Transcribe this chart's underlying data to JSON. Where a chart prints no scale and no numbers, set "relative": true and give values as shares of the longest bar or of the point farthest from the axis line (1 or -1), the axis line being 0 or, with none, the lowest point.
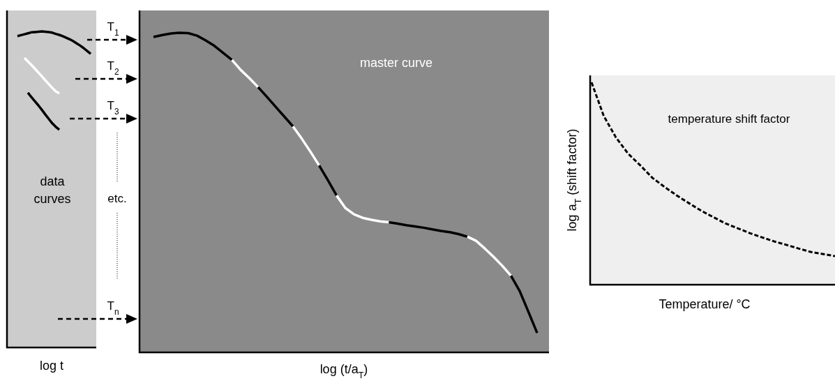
{
  "chart_data": [
    {
      "type": "line",
      "relative": true,
      "xlabel": "log t",
      "annotations": [
        "data curves",
        "T$_{1}$",
        "T$_{2}$",
        "T$_{3}$",
        "etc.",
        "T$_{n}$"
      ],
      "categories": [
        null,
        null,
        null,
        null,
        null,
        null,
        null,
        null,
        null,
        null,
        null,
        null,
        null,
        null,
        null,
        null,
        null,
        null,
        null,
        null,
        null,
        null,
        null,
        null,
        null
      ],
      "series": [
        {
          "color": "#000000",
          "values": [
            null,
            null,
            0.985,
            0.988,
            0.991,
            0.994,
            0.997,
            0.998,
            0.999,
            1,
            0.999,
            0.998,
            0.996,
            0.992,
            0.989,
            0.985,
            0.98,
            0.975,
            0.969,
            0.962,
            0.955,
            0.947,
            0.938,
            0.929,
            null
          ]
        },
        {
          "color": "#ffffff",
          "values": [
            null,
            null,
            null,
            null,
            0.916,
            0.905,
            0.894,
            0.882,
            0.87,
            0.858,
            0.845,
            0.833,
            0.821,
            0.81,
            0.804,
            null,
            null,
            null,
            null,
            null,
            null,
            null,
            null,
            null,
            null
          ]
        },
        {
          "color": "#000000",
          "values": [
            null,
            null,
            null,
            null,
            null,
            0.806,
            0.792,
            0.779,
            0.766,
            0.752,
            0.737,
            0.723,
            0.709,
            0.698,
            0.689,
            null,
            null,
            null,
            null,
            null,
            null,
            null,
            null,
            null,
            null
          ]
        }
      ]
    },
    {
      "type": "line",
      "relative": true,
      "xlabel": "log (t/a$_{T}$)",
      "annotations": [
        "master curve"
      ],
      "categories": [
        null,
        null,
        null,
        null,
        null,
        null,
        null,
        null,
        null,
        null,
        null,
        null,
        null,
        null,
        null,
        null,
        null,
        null,
        null,
        null,
        null,
        null,
        null,
        null,
        null,
        null,
        null,
        null,
        null,
        null,
        null,
        null,
        null,
        null,
        null,
        null,
        null,
        null,
        null,
        null,
        null,
        null,
        null,
        null,
        null
      ],
      "series": [
        {
          "color": "#000000",
          "values": [
            0.987,
            0.993,
            0.998,
            1,
            0.999,
            0.991,
            0.976,
            0.959,
            0.937,
            0.915,
            null,
            null,
            null,
            null,
            null,
            null,
            null,
            null,
            null,
            null,
            null,
            null,
            null,
            null,
            null,
            null,
            null,
            null,
            null,
            null,
            null,
            null,
            null,
            null,
            null,
            null,
            null,
            null,
            null,
            null,
            null,
            null,
            null,
            null,
            null
          ]
        },
        {
          "color": "#ffffff",
          "values": [
            null,
            null,
            null,
            null,
            null,
            null,
            null,
            null,
            null,
            0.915,
            0.884,
            0.858,
            0.83,
            null,
            null,
            null,
            null,
            null,
            null,
            null,
            null,
            null,
            null,
            null,
            null,
            null,
            null,
            null,
            null,
            null,
            null,
            null,
            null,
            null,
            null,
            null,
            null,
            null,
            null,
            null,
            null,
            null,
            null,
            null,
            null
          ]
        },
        {
          "color": "#000000",
          "values": [
            null,
            null,
            null,
            null,
            null,
            null,
            null,
            null,
            null,
            null,
            null,
            null,
            0.83,
            0.8,
            0.769,
            0.738,
            0.707,
            null,
            null,
            null,
            null,
            null,
            null,
            null,
            null,
            null,
            null,
            null,
            null,
            null,
            null,
            null,
            null,
            null,
            null,
            null,
            null,
            null,
            null,
            null,
            null,
            null,
            null,
            null,
            null
          ]
        },
        {
          "color": "#ffffff",
          "values": [
            null,
            null,
            null,
            null,
            null,
            null,
            null,
            null,
            null,
            null,
            null,
            null,
            null,
            null,
            null,
            null,
            0.707,
            0.669,
            0.628,
            0.585,
            null,
            null,
            null,
            null,
            null,
            null,
            null,
            null,
            null,
            null,
            null,
            null,
            null,
            null,
            null,
            null,
            null,
            null,
            null,
            null,
            null,
            null,
            null,
            null,
            null
          ]
        },
        {
          "color": "#000000",
          "values": [
            null,
            null,
            null,
            null,
            null,
            null,
            null,
            null,
            null,
            null,
            null,
            null,
            null,
            null,
            null,
            null,
            null,
            null,
            null,
            0.585,
            0.539,
            0.491,
            null,
            null,
            null,
            null,
            null,
            null,
            null,
            null,
            null,
            null,
            null,
            null,
            null,
            null,
            null,
            null,
            null,
            null,
            null,
            null,
            null,
            null,
            null
          ]
        },
        {
          "color": "#ffffff",
          "values": [
            null,
            null,
            null,
            null,
            null,
            null,
            null,
            null,
            null,
            null,
            null,
            null,
            null,
            null,
            null,
            null,
            null,
            null,
            null,
            null,
            null,
            0.491,
            0.452,
            0.432,
            0.421,
            0.415,
            0.41,
            0.407,
            null,
            null,
            null,
            null,
            null,
            null,
            null,
            null,
            null,
            null,
            null,
            null,
            null,
            null,
            null,
            null,
            null
          ]
        },
        {
          "color": "#000000",
          "values": [
            null,
            null,
            null,
            null,
            null,
            null,
            null,
            null,
            null,
            null,
            null,
            null,
            null,
            null,
            null,
            null,
            null,
            null,
            null,
            null,
            null,
            null,
            null,
            null,
            null,
            null,
            null,
            0.407,
            0.403,
            0.398,
            0.394,
            0.39,
            0.385,
            0.38,
            0.376,
            0.37,
            0.362,
            null,
            null,
            null,
            null,
            null,
            null,
            null,
            null
          ]
        },
        {
          "color": "#ffffff",
          "values": [
            null,
            null,
            null,
            null,
            null,
            null,
            null,
            null,
            null,
            null,
            null,
            null,
            null,
            null,
            null,
            null,
            null,
            null,
            null,
            null,
            null,
            null,
            null,
            null,
            null,
            null,
            null,
            null,
            null,
            null,
            null,
            null,
            null,
            null,
            null,
            null,
            0.362,
            0.349,
            0.325,
            0.299,
            0.271,
            0.24,
            null,
            null,
            null
          ]
        },
        {
          "color": "#000000",
          "values": [
            null,
            null,
            null,
            null,
            null,
            null,
            null,
            null,
            null,
            null,
            null,
            null,
            null,
            null,
            null,
            null,
            null,
            null,
            null,
            null,
            null,
            null,
            null,
            null,
            null,
            null,
            null,
            null,
            null,
            null,
            null,
            null,
            null,
            null,
            null,
            null,
            null,
            null,
            null,
            null,
            null,
            0.24,
            0.192,
            0.127,
            0.061
          ]
        }
      ]
    },
    {
      "type": "line",
      "relative": true,
      "xlabel": "Temperature/ °C",
      "ylabel": "log a$_{T}$ (shift factor)",
      "annotations": [
        "temperature shift factor"
      ],
      "line_style": "dashed",
      "categories": [
        null,
        null,
        null,
        null,
        null,
        null,
        null,
        null,
        null,
        null,
        null,
        null,
        null,
        null,
        null,
        null,
        null,
        null,
        null,
        null,
        null
      ],
      "series": [
        {
          "color": "#000000",
          "values": [
            1,
            0.834,
            0.728,
            0.648,
            0.59,
            0.528,
            0.483,
            0.441,
            0.403,
            0.366,
            0.334,
            0.303,
            0.279,
            0.255,
            0.234,
            0.214,
            0.197,
            0.179,
            0.162,
            0.152,
            0.141
          ]
        }
      ]
    }
  ]
}
